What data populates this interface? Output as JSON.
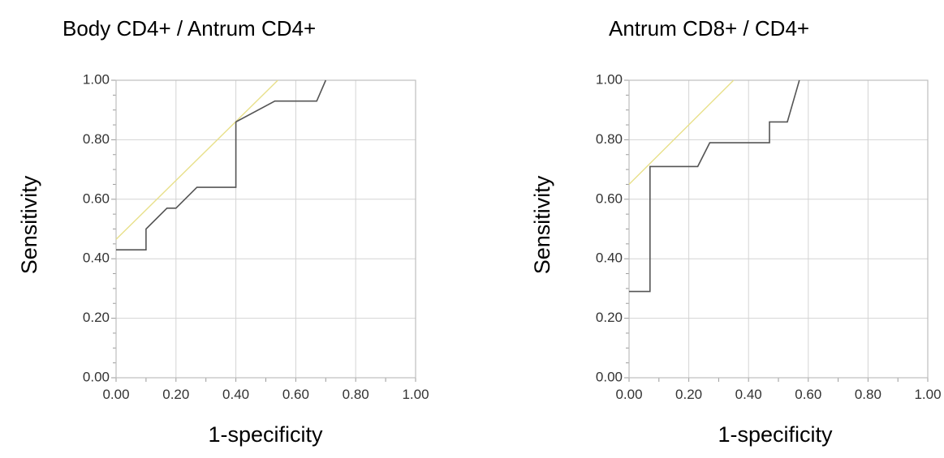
{
  "chart_data": [
    {
      "type": "line",
      "title": "Body CD4+ / Antrum CD4+",
      "xlabel": "1-specificity",
      "ylabel": "Sensitivity",
      "xlim": [
        0,
        1
      ],
      "ylim": [
        0,
        1
      ],
      "grid": true,
      "x_ticks": [
        "0.00",
        "0.20",
        "0.40",
        "0.60",
        "0.80",
        "1.00"
      ],
      "y_ticks": [
        "0.00",
        "0.20",
        "0.40",
        "0.60",
        "0.80",
        "1.00"
      ],
      "series": [
        {
          "color": "#555555",
          "style": "step",
          "points": [
            [
              0,
              0.43
            ],
            [
              0.1,
              0.43
            ],
            [
              0.1,
              0.5
            ],
            [
              0.17,
              0.57
            ],
            [
              0.2,
              0.57
            ],
            [
              0.27,
              0.64
            ],
            [
              0.4,
              0.64
            ],
            [
              0.4,
              0.86
            ],
            [
              0.53,
              0.93
            ],
            [
              0.67,
              0.93
            ],
            [
              0.7,
              1.0
            ]
          ]
        },
        {
          "color": "#e8e08a",
          "style": "line",
          "points": [
            [
              0,
              0.465
            ],
            [
              0.54,
              1.0
            ]
          ]
        }
      ]
    },
    {
      "type": "line",
      "title": "Antrum CD8+ / CD4+",
      "xlabel": "1-specificity",
      "ylabel": "Sensitivity",
      "xlim": [
        0,
        1
      ],
      "ylim": [
        0,
        1
      ],
      "grid": true,
      "x_ticks": [
        "0.00",
        "0.20",
        "0.40",
        "0.60",
        "0.80",
        "1.00"
      ],
      "y_ticks": [
        "0.00",
        "0.20",
        "0.40",
        "0.60",
        "0.80",
        "1.00"
      ],
      "series": [
        {
          "color": "#555555",
          "style": "step",
          "points": [
            [
              0,
              0.29
            ],
            [
              0.07,
              0.29
            ],
            [
              0.07,
              0.71
            ],
            [
              0.23,
              0.71
            ],
            [
              0.27,
              0.79
            ],
            [
              0.47,
              0.79
            ],
            [
              0.47,
              0.86
            ],
            [
              0.53,
              0.86
            ],
            [
              0.57,
              1.0
            ]
          ]
        },
        {
          "color": "#e8e08a",
          "style": "line",
          "points": [
            [
              0,
              0.65
            ],
            [
              0.35,
              1.0
            ]
          ]
        }
      ]
    }
  ]
}
